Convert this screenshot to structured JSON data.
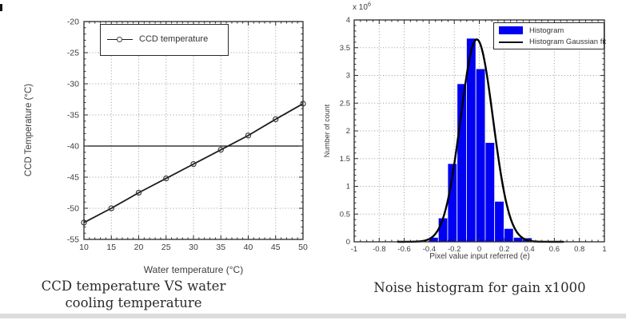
{
  "chart_data": [
    {
      "id": "ccd-temperature-line-chart",
      "type": "line",
      "caption": "CCD temperature VS water cooling temperature",
      "xlabel": "Water temperature (°C)",
      "ylabel": "CCD Temperature (°C)",
      "xlim": [
        10,
        50
      ],
      "ylim": [
        -55,
        -20
      ],
      "xticks": [
        10,
        15,
        20,
        25,
        30,
        35,
        40,
        45,
        50
      ],
      "yticks": [
        -55,
        -50,
        -45,
        -40,
        -35,
        -30,
        -25,
        -20
      ],
      "x_minor_step": 1,
      "y_minor_step": 1,
      "grid": "dotted",
      "reference_hline": -40,
      "legend": {
        "position": "top-left",
        "entries": [
          {
            "label": "CCD temperature",
            "marker": "line-with-circle"
          }
        ]
      },
      "series": [
        {
          "name": "CCD temperature",
          "color": "#1c1c1c",
          "marker": "open-circle",
          "x": [
            10,
            15,
            20,
            25,
            30,
            35,
            40,
            45,
            50
          ],
          "y": [
            -52.3,
            -50.0,
            -47.5,
            -45.2,
            -42.9,
            -40.6,
            -38.3,
            -35.7,
            -33.2
          ]
        }
      ]
    },
    {
      "id": "noise-histogram-chart",
      "type": "bar",
      "caption": "Noise histogram for gain x1000",
      "xlabel": "Pixel value input referred (e)",
      "ylabel": "Number of count",
      "y_scale_label": {
        "mantissa": "x 10",
        "exponent": "6"
      },
      "y_unit": 1000000,
      "xlim": [
        -1,
        1
      ],
      "ylim": [
        0,
        4
      ],
      "xticks": [
        -1,
        -0.8,
        -0.6,
        -0.4,
        -0.2,
        0,
        0.2,
        0.4,
        0.6,
        0.8,
        1
      ],
      "xtick_labels": [
        "-1",
        "-0.8",
        "-0.6",
        "-0.4",
        "-0.2",
        "0",
        "0.2",
        "0.4",
        "0.6",
        "0.8",
        "1"
      ],
      "yticks": [
        0,
        0.5,
        1,
        1.5,
        2,
        2.5,
        3,
        3.5,
        4
      ],
      "ytick_labels": [
        "0",
        "0.5",
        "1",
        "1.5",
        "2",
        "2.5",
        "3",
        "3.5",
        "4"
      ],
      "x_minor_step": 0.05,
      "y_minor_step": 0.1,
      "grid": "dotted",
      "bar_color": "#0000f2",
      "bin_width": 0.0749,
      "bins": [
        {
          "center": -0.365,
          "height": 0.08
        },
        {
          "center": -0.29,
          "height": 0.43
        },
        {
          "center": -0.215,
          "height": 1.41
        },
        {
          "center": -0.14,
          "height": 2.85
        },
        {
          "center": -0.065,
          "height": 3.67
        },
        {
          "center": 0.01,
          "height": 3.12
        },
        {
          "center": 0.085,
          "height": 1.79
        },
        {
          "center": 0.16,
          "height": 0.73
        },
        {
          "center": 0.235,
          "height": 0.24
        },
        {
          "center": 0.31,
          "height": 0.08
        },
        {
          "center": 0.385,
          "height": 0.07
        }
      ],
      "gaussian_fit": {
        "amplitude": 3.65,
        "mean": -0.02,
        "sigma": 0.13,
        "color": "#000000",
        "draw_range": [
          -0.65,
          0.68
        ]
      },
      "legend": {
        "position": "top-right",
        "entries": [
          {
            "label": "Histogram",
            "marker": "patch"
          },
          {
            "label": "Histogram Gaussian fit",
            "marker": "line"
          }
        ]
      }
    }
  ],
  "styles": {
    "axis_color": "#2a2a2a",
    "grid_color": "#9a9a9a",
    "tick_text_color": "#3c3c3c"
  }
}
